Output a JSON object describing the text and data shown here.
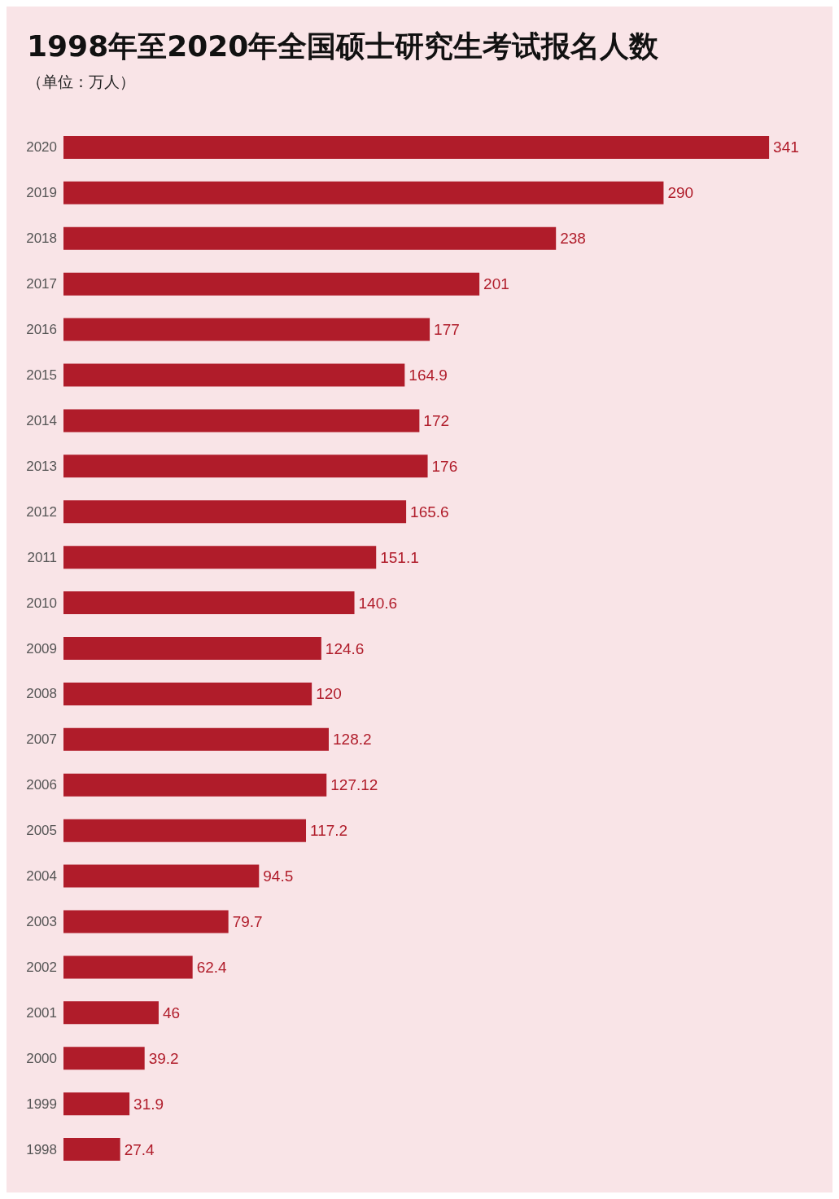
{
  "chart_data": {
    "type": "bar",
    "orientation": "horizontal",
    "title": "1998年至2020年全国硕士研究生考试报名人数",
    "subtitle": "（单位：万人）",
    "categories": [
      "2020",
      "2019",
      "2018",
      "2017",
      "2016",
      "2015",
      "2014",
      "2013",
      "2012",
      "2011",
      "2010",
      "2009",
      "2008",
      "2007",
      "2006",
      "2005",
      "2004",
      "2003",
      "2002",
      "2001",
      "2000",
      "1999",
      "1998"
    ],
    "values": [
      341,
      290,
      238,
      201,
      177,
      164.9,
      172,
      176,
      165.6,
      151.1,
      140.6,
      124.6,
      120,
      128.2,
      127.12,
      117.2,
      94.5,
      79.7,
      62.4,
      46,
      39.2,
      31.9,
      27.4
    ],
    "color": "#b01c2a",
    "data_labels": true,
    "grid": false,
    "tick_labels": "y"
  }
}
